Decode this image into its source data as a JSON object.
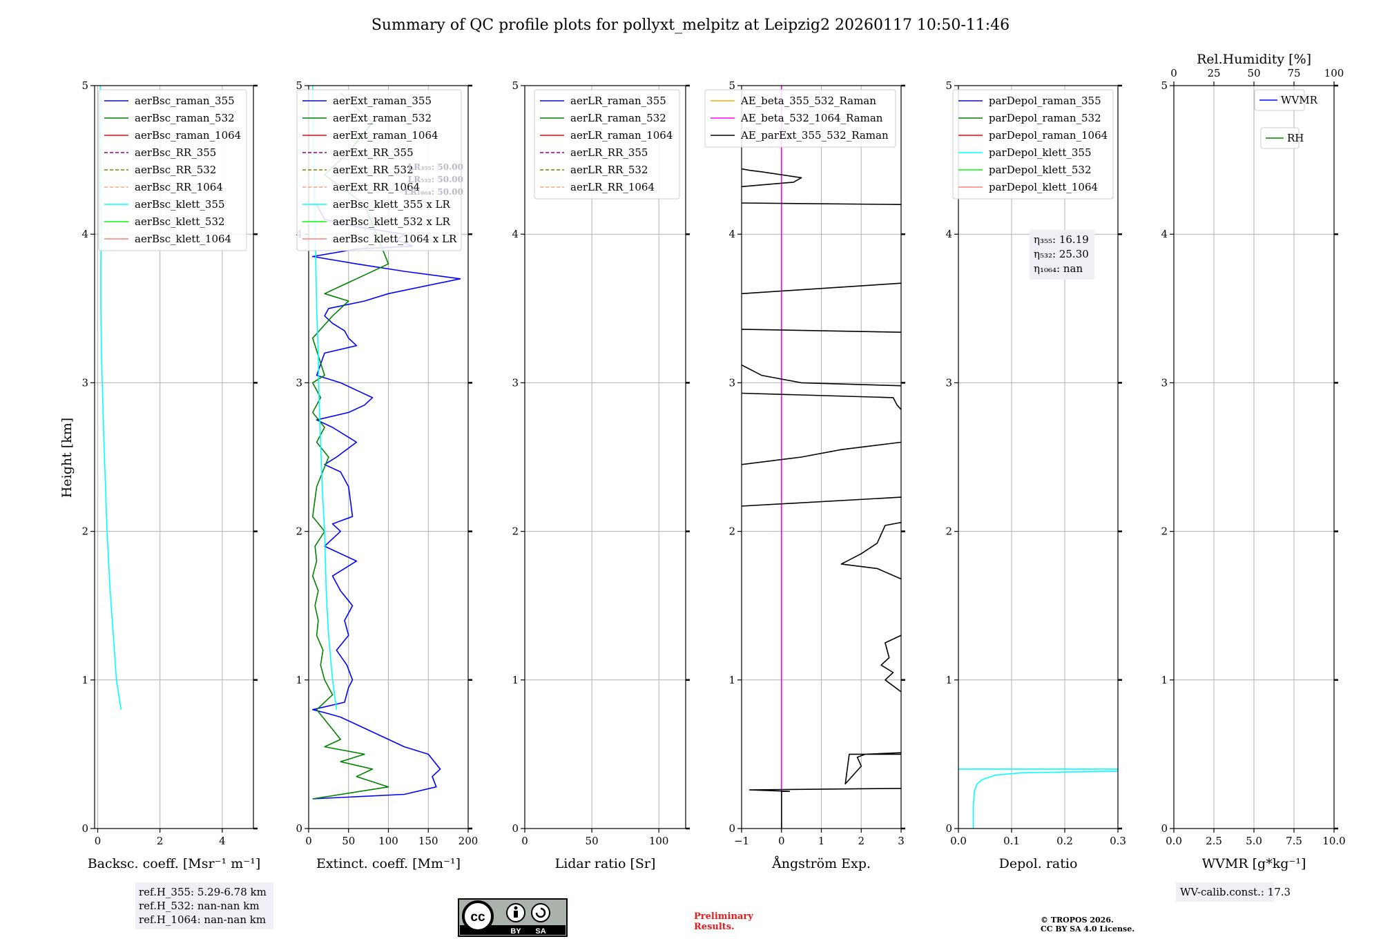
{
  "title": "Summary of QC profile plots for pollyxt_melpitz at Leipzig2 20260117 10:50-11:46",
  "ylabel": "Height [km]",
  "chart_data": [
    {
      "type": "line",
      "panel": "backscatter",
      "xlabel": "Backsc. coeff. [Msr⁻¹ m⁻¹]",
      "xlim": [
        -0.1,
        5
      ],
      "ylim": [
        0,
        5
      ],
      "xticks": [
        "0",
        "2",
        "4"
      ],
      "xtick_values": [
        0,
        2,
        4
      ],
      "yticks": [
        "0",
        "1",
        "2",
        "3",
        "4",
        "5"
      ],
      "legend": [
        {
          "label": "aerBsc_raman_355",
          "color": "#0000ff",
          "dash": false
        },
        {
          "label": "aerBsc_raman_532",
          "color": "#008000",
          "dash": false
        },
        {
          "label": "aerBsc_raman_1064",
          "color": "#ff0000",
          "dash": false
        },
        {
          "label": "aerBsc_RR_355",
          "color": "#800080",
          "dash": true
        },
        {
          "label": "aerBsc_RR_532",
          "color": "#808000",
          "dash": true
        },
        {
          "label": "aerBsc_RR_1064",
          "color": "#ffa07a",
          "dash": true
        },
        {
          "label": "aerBsc_klett_355",
          "color": "#00ffff",
          "dash": false
        },
        {
          "label": "aerBsc_klett_532",
          "color": "#00ff00",
          "dash": false
        },
        {
          "label": "aerBsc_klett_1064",
          "color": "#ff7f7f",
          "dash": false
        }
      ],
      "series": [
        {
          "name": "aerBsc_klett_355",
          "color": "#00ffff",
          "x": [
            0.75,
            0.6,
            0.5,
            0.4,
            0.3,
            0.25,
            0.2,
            0.16,
            0.12,
            0.1,
            0.1,
            0.12,
            0.08,
            0.1,
            0.08,
            0.1,
            0.08
          ],
          "y": [
            0.8,
            1.0,
            1.3,
            1.6,
            2.0,
            2.3,
            2.6,
            2.9,
            3.2,
            3.5,
            3.8,
            4.1,
            4.3,
            4.5,
            4.7,
            4.9,
            5.0
          ]
        }
      ],
      "annotation": [
        "ref.H_355: 5.29-6.78 km",
        "ref.H_532: nan-nan km",
        "ref.H_1064: nan-nan km"
      ]
    },
    {
      "type": "line",
      "panel": "extinction",
      "xlabel": "Extinct. coeff. [Mm⁻¹]",
      "xlim": [
        0,
        200
      ],
      "ylim": [
        0,
        5
      ],
      "xticks": [
        "0",
        "50",
        "100",
        "150",
        "200"
      ],
      "xtick_values": [
        0,
        50,
        100,
        150,
        200
      ],
      "yticks": [
        "0",
        "1",
        "2",
        "3",
        "4",
        "5"
      ],
      "legend": [
        {
          "label": "aerExt_raman_355",
          "color": "#0000ff",
          "dash": false
        },
        {
          "label": "aerExt_raman_532",
          "color": "#008000",
          "dash": false
        },
        {
          "label": "aerExt_raman_1064",
          "color": "#ff0000",
          "dash": false
        },
        {
          "label": "aerExt_RR_355",
          "color": "#800080",
          "dash": true
        },
        {
          "label": "aerExt_RR_532",
          "color": "#808000",
          "dash": true
        },
        {
          "label": "aerExt_RR_1064",
          "color": "#ffa07a",
          "dash": true
        },
        {
          "label": "aerBsc_klett_355 x LR",
          "color": "#00ffff",
          "dash": false
        },
        {
          "label": "aerBsc_klett_532 x LR",
          "color": "#00ff00",
          "dash": false
        },
        {
          "label": "aerBsc_klett_1064 x LR",
          "color": "#ff7f7f",
          "dash": false
        }
      ],
      "lr_labels": [
        "LR₃₅₅: 50.00",
        "LR₅₃₂: 50.00",
        "LR₁₀₆₄: 50.00"
      ],
      "series": [
        {
          "name": "aerExt_raman_355",
          "color": "#0000ff",
          "x": [
            5,
            120,
            160,
            155,
            165,
            150,
            120,
            80,
            60,
            40,
            20,
            5,
            45,
            50,
            55,
            48,
            35,
            50,
            45,
            55,
            40,
            30,
            60,
            20,
            40,
            30,
            55,
            50,
            40,
            20,
            35,
            60,
            30,
            10,
            50,
            70,
            80,
            60,
            40,
            10,
            20,
            60,
            50,
            45,
            30,
            20,
            25,
            70,
            100,
            190,
            120,
            60,
            5,
            60,
            130,
            110,
            120,
            60,
            20,
            10
          ],
          "y": [
            0.2,
            0.23,
            0.28,
            0.35,
            0.4,
            0.5,
            0.55,
            0.65,
            0.7,
            0.75,
            0.78,
            0.8,
            0.85,
            0.95,
            1.0,
            1.1,
            1.2,
            1.3,
            1.4,
            1.5,
            1.6,
            1.7,
            1.8,
            1.9,
            2.0,
            2.05,
            2.1,
            2.3,
            2.4,
            2.45,
            2.5,
            2.6,
            2.7,
            2.75,
            2.8,
            2.85,
            2.9,
            2.95,
            3.0,
            3.05,
            3.2,
            3.25,
            3.3,
            3.35,
            3.4,
            3.45,
            3.5,
            3.55,
            3.6,
            3.7,
            3.75,
            3.8,
            3.85,
            3.9,
            3.92,
            3.96,
            4.0,
            4.05,
            4.1,
            4.2
          ]
        },
        {
          "name": "aerExt_raman_532",
          "color": "#008000",
          "x": [
            5,
            100,
            60,
            80,
            40,
            70,
            20,
            40,
            10,
            30,
            20,
            15,
            18,
            10,
            12,
            8,
            12,
            5,
            10,
            8,
            20,
            5,
            10,
            25,
            10,
            20,
            5,
            15,
            5,
            20,
            5,
            30,
            50,
            20,
            40,
            60,
            100,
            70,
            20,
            50,
            80,
            60,
            40
          ],
          "y": [
            0.2,
            0.28,
            0.35,
            0.4,
            0.45,
            0.5,
            0.55,
            0.6,
            0.8,
            0.9,
            1.0,
            1.1,
            1.2,
            1.3,
            1.4,
            1.5,
            1.6,
            1.7,
            1.8,
            1.9,
            2.0,
            2.1,
            2.3,
            2.5,
            2.6,
            2.7,
            2.8,
            2.9,
            3.0,
            3.05,
            3.3,
            3.45,
            3.55,
            3.6,
            3.65,
            3.7,
            3.8,
            4.2,
            4.4,
            4.55,
            4.75,
            4.85,
            4.95
          ]
        },
        {
          "name": "aerBsc_klett_355 x LR",
          "color": "#00ffff",
          "x": [
            35,
            30,
            25,
            22,
            20,
            17,
            15,
            13,
            12,
            10,
            9,
            8,
            7,
            6,
            5
          ],
          "y": [
            0.8,
            1.0,
            1.3,
            1.6,
            2.0,
            2.3,
            2.6,
            2.9,
            3.2,
            3.5,
            3.8,
            4.1,
            4.4,
            4.7,
            5.0
          ]
        }
      ]
    },
    {
      "type": "line",
      "panel": "lidar_ratio",
      "xlabel": "Lidar ratio [Sr]",
      "xlim": [
        0,
        120
      ],
      "ylim": [
        0,
        5
      ],
      "xticks": [
        "0",
        "50",
        "100"
      ],
      "xtick_values": [
        0,
        50,
        100
      ],
      "yticks": [
        "0",
        "1",
        "2",
        "3",
        "4",
        "5"
      ],
      "legend": [
        {
          "label": "aerLR_raman_355",
          "color": "#0000ff",
          "dash": false
        },
        {
          "label": "aerLR_raman_532",
          "color": "#008000",
          "dash": false
        },
        {
          "label": "aerLR_raman_1064",
          "color": "#ff0000",
          "dash": false
        },
        {
          "label": "aerLR_RR_355",
          "color": "#800080",
          "dash": true
        },
        {
          "label": "aerLR_RR_532",
          "color": "#808000",
          "dash": true
        },
        {
          "label": "aerLR_RR_1064",
          "color": "#ffa07a",
          "dash": true
        }
      ],
      "series": []
    },
    {
      "type": "line",
      "panel": "angstrom",
      "xlabel": "Ångström Exp.",
      "xlim": [
        -1,
        3
      ],
      "ylim": [
        0,
        5
      ],
      "xticks": [
        "−1",
        "0",
        "1",
        "2",
        "3"
      ],
      "xtick_values": [
        -1,
        0,
        1,
        2,
        3
      ],
      "yticks": [
        "0",
        "1",
        "2",
        "3",
        "4",
        "5"
      ],
      "legend": [
        {
          "label": "AE_beta_355_532_Raman",
          "color": "#ffa500",
          "dash": false
        },
        {
          "label": "AE_beta_532_1064_Raman",
          "color": "#ff00ff",
          "dash": false
        },
        {
          "label": "AE_parExt_355_532_Raman",
          "color": "#000000",
          "dash": false
        }
      ],
      "series": [
        {
          "name": "AE_beta_532_1064_Raman",
          "color": "#ff00ff",
          "x": [
            0,
            0
          ],
          "y": [
            0,
            5
          ]
        },
        {
          "name": "AE_parExt_355_532_Raman",
          "color": "#000000",
          "segments": [
            {
              "x": [
                0,
                0,
                0.2,
                -0.8,
                3
              ],
              "y": [
                0,
                0.25,
                0.25,
                0.26,
                0.27
              ]
            },
            {
              "x": [
                3,
                1.7,
                1.6,
                2.0,
                1.9,
                2.1,
                3
              ],
              "y": [
                0.5,
                0.5,
                0.3,
                0.42,
                0.48,
                0.5,
                0.51
              ]
            },
            {
              "x": [
                3,
                2.6,
                2.8,
                2.5,
                2.7,
                2.6,
                3
              ],
              "y": [
                0.92,
                1.0,
                1.05,
                1.1,
                1.15,
                1.25,
                1.3
              ]
            },
            {
              "x": [
                3,
                2.4,
                1.5,
                2.0,
                2.4,
                2.5,
                2.6,
                3
              ],
              "y": [
                1.68,
                1.75,
                1.78,
                1.85,
                1.92,
                1.98,
                2.04,
                2.06
              ]
            },
            {
              "x": [
                -1,
                3
              ],
              "y": [
                2.17,
                2.23
              ]
            },
            {
              "x": [
                -1,
                0.5,
                1.5,
                3
              ],
              "y": [
                2.45,
                2.5,
                2.55,
                2.6
              ]
            },
            {
              "x": [
                -1,
                2.8,
                2.9,
                3
              ],
              "y": [
                2.93,
                2.9,
                2.85,
                2.82
              ]
            },
            {
              "x": [
                -1,
                -0.5,
                0.5,
                3
              ],
              "y": [
                3.12,
                3.05,
                3.0,
                2.98
              ]
            },
            {
              "x": [
                -1,
                3
              ],
              "y": [
                3.36,
                3.34
              ]
            },
            {
              "x": [
                -1,
                3
              ],
              "y": [
                3.6,
                3.67
              ]
            },
            {
              "x": [
                -1,
                3
              ],
              "y": [
                4.21,
                4.2
              ]
            },
            {
              "x": [
                -1,
                0.3,
                0.5,
                -0.5,
                -0.8,
                -1
              ],
              "y": [
                4.32,
                4.35,
                4.38,
                4.42,
                4.43,
                4.44
              ]
            }
          ]
        }
      ]
    },
    {
      "type": "line",
      "panel": "depolarization",
      "xlabel": "Depol. ratio",
      "xlim": [
        0,
        0.3
      ],
      "ylim": [
        0,
        5
      ],
      "xticks": [
        "0.0",
        "0.1",
        "0.2",
        "0.3"
      ],
      "xtick_values": [
        0,
        0.1,
        0.2,
        0.3
      ],
      "yticks": [
        "0",
        "1",
        "2",
        "3",
        "4",
        "5"
      ],
      "legend": [
        {
          "label": "parDepol_raman_355",
          "color": "#0000ff",
          "dash": false
        },
        {
          "label": "parDepol_raman_532",
          "color": "#008000",
          "dash": false
        },
        {
          "label": "parDepol_raman_1064",
          "color": "#ff0000",
          "dash": false
        },
        {
          "label": "parDepol_klett_355",
          "color": "#00ffff",
          "dash": false
        },
        {
          "label": "parDepol_klett_532",
          "color": "#00ff00",
          "dash": false
        },
        {
          "label": "parDepol_klett_1064",
          "color": "#ff7f7f",
          "dash": false
        }
      ],
      "eta_labels": [
        "η₃₅₅: 16.19",
        "η₅₃₂: 25.30",
        "η₁₀₆₄: nan"
      ],
      "series": [
        {
          "name": "parDepol_klett_355",
          "color": "#00ffff",
          "x": [
            0.028,
            0.028,
            0.03,
            0.035,
            0.045,
            0.07,
            0.12,
            0.2,
            0.3
          ],
          "y": [
            0.0,
            0.15,
            0.25,
            0.3,
            0.33,
            0.36,
            0.375,
            0.38,
            0.385
          ]
        },
        {
          "name": "parDepol_klett_355 (upper)",
          "color": "#00ffff",
          "x": [
            0.0,
            0.3
          ],
          "y": [
            0.4,
            0.4
          ]
        }
      ]
    },
    {
      "type": "line",
      "panel": "wvmr",
      "xlabel": "WVMR [g*kg⁻¹]",
      "xlim": [
        0,
        10
      ],
      "ylim": [
        0,
        5
      ],
      "xticks": [
        "0.0",
        "2.5",
        "5.0",
        "7.5",
        "10.0"
      ],
      "xtick_values": [
        0,
        2.5,
        5,
        7.5,
        10
      ],
      "yticks": [
        "0",
        "1",
        "2",
        "3",
        "4",
        "5"
      ],
      "top_label": "Rel.Humidity [%]",
      "top_xticks": [
        "0",
        "25",
        "50",
        "75",
        "100"
      ],
      "legend": [
        {
          "label": "WVMR",
          "color": "#0000ff",
          "dash": false
        },
        {
          "label": "RH",
          "color": "#008000",
          "dash": false
        }
      ],
      "annotation": [
        "WV-calib.const.: 17.3"
      ],
      "series": []
    }
  ],
  "footer": {
    "cc_badge": {
      "cc": "cc",
      "by": "BY",
      "sa": "SA"
    },
    "preliminary": [
      "Preliminary",
      "Results."
    ],
    "copyright": [
      "© TROPOS 2026.",
      "CC BY SA 4.0 License."
    ]
  }
}
